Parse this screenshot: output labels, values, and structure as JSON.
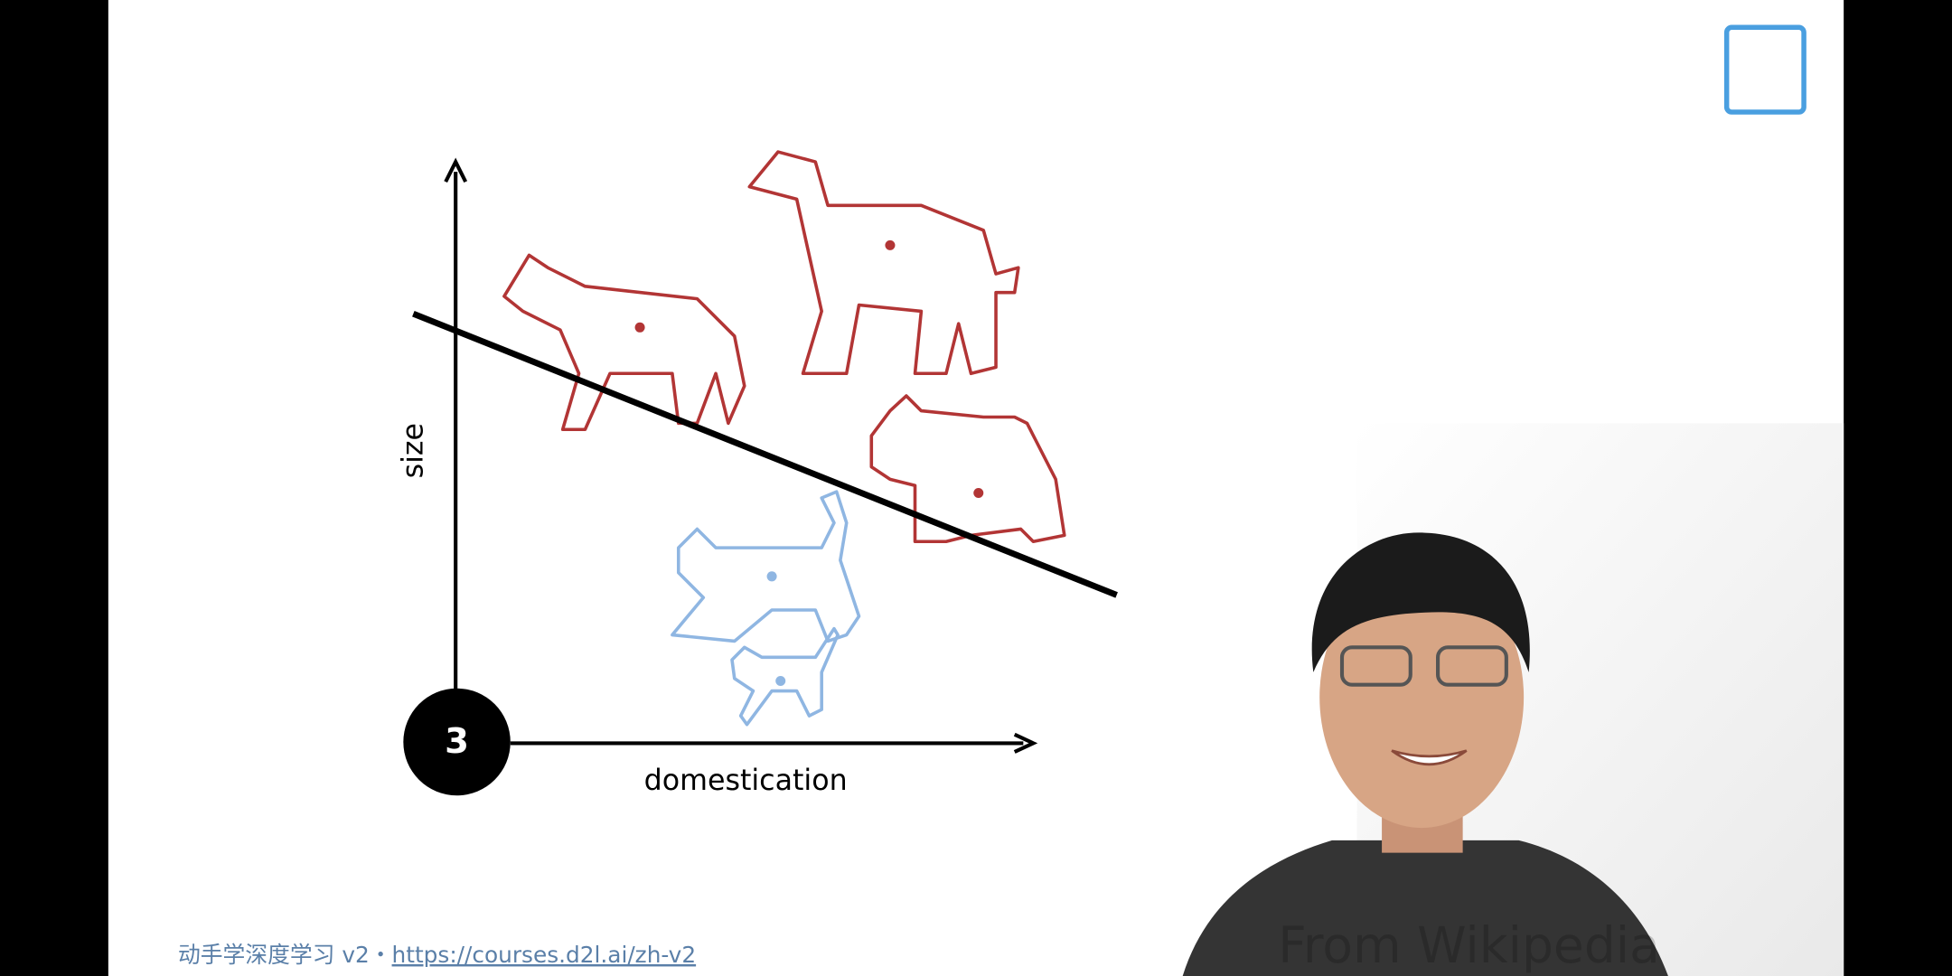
{
  "slide": {
    "badge": "3",
    "y_axis_label": "size",
    "x_axis_label": "domestication"
  },
  "footer": {
    "course": "动手学深度学习 v2",
    "separator": "・",
    "url": "https://courses.d2l.ai/zh-v2"
  },
  "video": {
    "watermark": "From Wikipedia"
  }
}
